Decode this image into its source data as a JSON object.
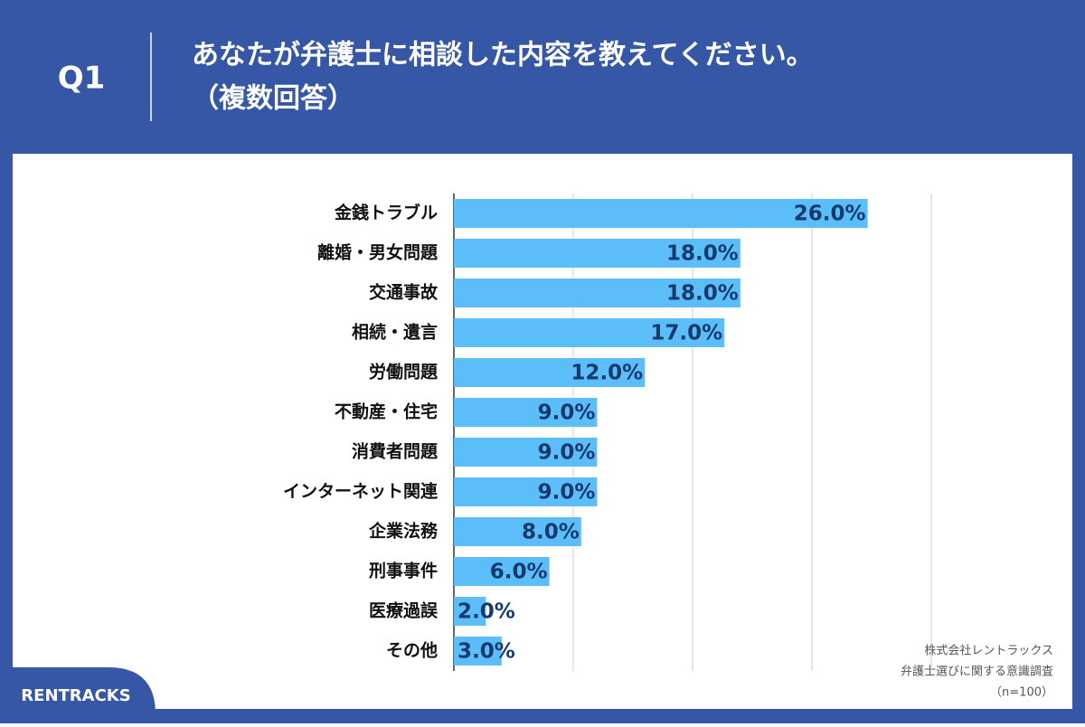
{
  "chart_data": {
    "type": "bar",
    "orientation": "horizontal",
    "question_number": "Q1",
    "title": "あなたが弁護士に相談した内容を教えてください。",
    "subtitle": "（複数回答）",
    "categories": [
      "金銭トラブル",
      "離婚・男女問題",
      "交通事故",
      "相続・遺言",
      "労働問題",
      "不動産・住宅",
      "消費者問題",
      "インターネット関連",
      "企業法務",
      "刑事事件",
      "医療過誤",
      "その他"
    ],
    "values": [
      26.0,
      18.0,
      18.0,
      17.0,
      12.0,
      9.0,
      9.0,
      9.0,
      8.0,
      6.0,
      2.0,
      3.0
    ],
    "value_labels": [
      "26.0%",
      "18.0%",
      "18.0%",
      "17.0%",
      "12.0%",
      "9.0%",
      "9.0%",
      "9.0%",
      "8.0%",
      "6.0%",
      "2.0%",
      "3.0%"
    ],
    "color": "#5bbef8",
    "xlim": [
      0,
      30
    ],
    "xticks": [
      0,
      7.5,
      15,
      22.5,
      30
    ],
    "grid": true,
    "source": [
      "株式会社レントラックス",
      "弁護士選びに関する意識調査",
      "（n=100）"
    ],
    "logo": "RENTRACKS"
  }
}
